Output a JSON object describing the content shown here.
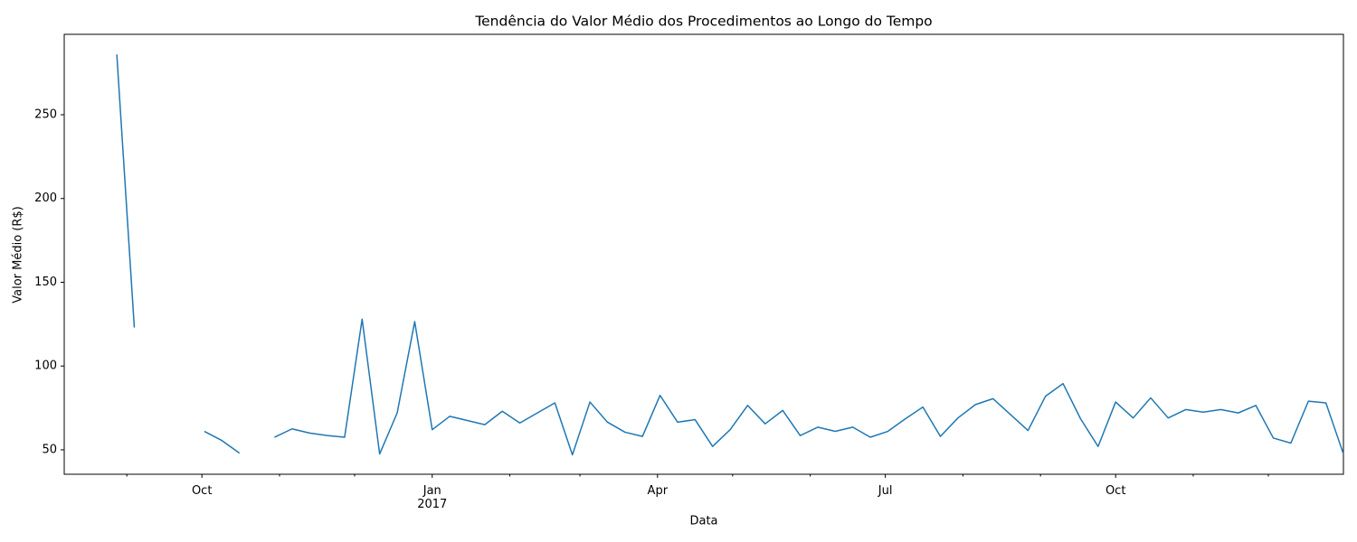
{
  "chart_data": {
    "type": "line",
    "title": "Tendência do Valor Médio dos Procedimentos ao Longo do Tempo",
    "xlabel": "Data",
    "ylabel": "Valor Médio (R$)",
    "x": [
      "2016-08-07",
      "2016-08-14",
      "2016-08-21",
      "2016-08-28",
      "2016-09-04",
      "2016-09-11",
      "2016-09-18",
      "2016-09-25",
      "2016-10-02",
      "2016-10-09",
      "2016-10-16",
      "2016-10-23",
      "2016-10-30",
      "2016-11-06",
      "2016-11-13",
      "2016-11-20",
      "2016-11-27",
      "2016-12-04",
      "2016-12-11",
      "2016-12-18",
      "2016-12-25",
      "2017-01-01",
      "2017-01-08",
      "2017-01-15",
      "2017-01-22",
      "2017-01-29",
      "2017-02-05",
      "2017-02-12",
      "2017-02-19",
      "2017-02-26",
      "2017-03-05",
      "2017-03-12",
      "2017-03-19",
      "2017-03-26",
      "2017-04-02",
      "2017-04-09",
      "2017-04-16",
      "2017-04-23",
      "2017-04-30",
      "2017-05-07",
      "2017-05-14",
      "2017-05-21",
      "2017-05-28",
      "2017-06-04",
      "2017-06-11",
      "2017-06-18",
      "2017-06-25",
      "2017-07-02",
      "2017-07-09",
      "2017-07-16",
      "2017-07-23",
      "2017-07-30",
      "2017-08-06",
      "2017-08-13",
      "2017-08-20",
      "2017-08-27",
      "2017-09-03",
      "2017-09-10",
      "2017-09-17",
      "2017-09-24",
      "2017-10-01",
      "2017-10-08",
      "2017-10-15",
      "2017-10-22",
      "2017-10-29",
      "2017-11-05",
      "2017-11-12",
      "2017-11-19",
      "2017-11-26",
      "2017-12-03",
      "2017-12-10",
      "2017-12-17",
      "2017-12-24",
      "2017-12-31"
    ],
    "series": [
      {
        "name": "Valor Médio",
        "color": "#1f77b4",
        "values": [
          null,
          null,
          null,
          286,
          123,
          null,
          null,
          null,
          61,
          55.5,
          48,
          null,
          57.5,
          62.5,
          60,
          58.5,
          57.5,
          128,
          47.5,
          72,
          126.5,
          62,
          70,
          67.5,
          65,
          73,
          66,
          72,
          78,
          47,
          78.5,
          66.5,
          60.5,
          58,
          82.5,
          66.5,
          68,
          52,
          62,
          76.5,
          65.5,
          73.5,
          58.5,
          63.5,
          61,
          63.5,
          57.5,
          61,
          68.5,
          75.5,
          58,
          69,
          77,
          80.5,
          71,
          61.5,
          82,
          89.5,
          68.5,
          52,
          78.5,
          69,
          81,
          69,
          74,
          72.5,
          74,
          72,
          76.5,
          57,
          54,
          79,
          78,
          47.5
        ]
      }
    ],
    "xlim": [
      "2016-08-07",
      "2017-12-31"
    ],
    "xticks": [
      {
        "value": "2016-10-01",
        "label": "Oct"
      },
      {
        "value": "2017-01-01",
        "label": "Jan\n2017"
      },
      {
        "value": "2017-04-01",
        "label": "Apr"
      },
      {
        "value": "2017-07-01",
        "label": "Jul"
      },
      {
        "value": "2017-10-01",
        "label": "Oct"
      }
    ],
    "xminorticks": [
      "2016-09-01",
      "2016-11-01",
      "2016-12-01",
      "2017-02-01",
      "2017-03-01",
      "2017-05-01",
      "2017-06-01",
      "2017-08-01",
      "2017-09-01",
      "2017-11-01",
      "2017-12-01"
    ],
    "ylim": [
      35.4,
      298
    ],
    "yticks": [
      50,
      100,
      150,
      200,
      250
    ],
    "grid": false
  }
}
